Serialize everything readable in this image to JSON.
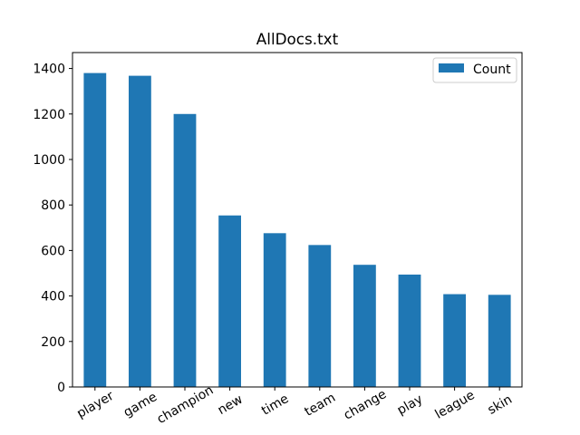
{
  "chart_data": {
    "type": "bar",
    "title": "AllDocs.txt",
    "xlabel": "",
    "ylabel": "",
    "categories": [
      "player",
      "game",
      "champion",
      "new",
      "time",
      "team",
      "change",
      "play",
      "league",
      "skin"
    ],
    "series": [
      {
        "name": "Count",
        "color": "#1f77b4",
        "values": [
          1380,
          1368,
          1200,
          754,
          676,
          624,
          537,
          494,
          408,
          405
        ]
      }
    ],
    "ylim": [
      0,
      1400
    ],
    "yticks": [
      0,
      200,
      400,
      600,
      800,
      1000,
      1200,
      1400
    ],
    "grid": false,
    "legend_position": "top-right",
    "xtick_rotation": -30
  }
}
